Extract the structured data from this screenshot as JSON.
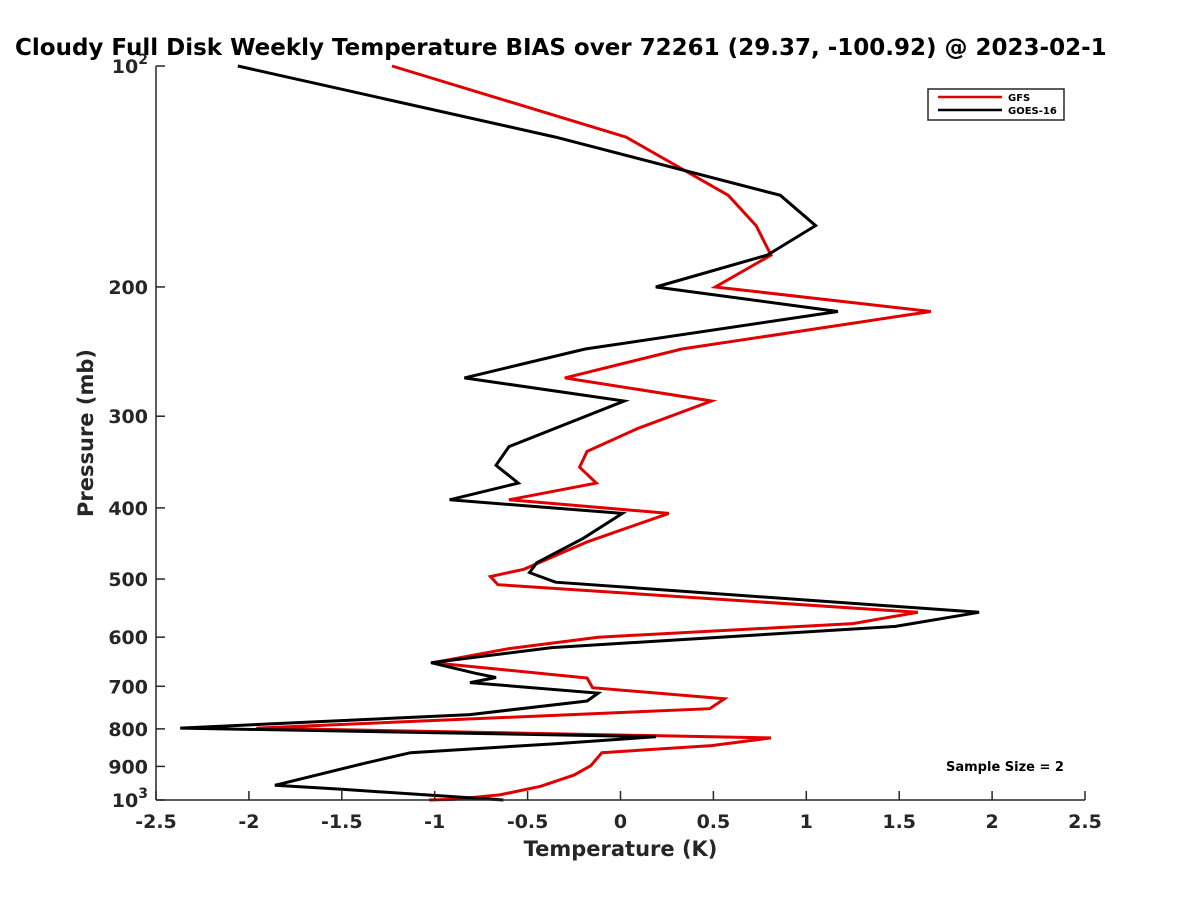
{
  "chart_data": {
    "type": "line",
    "title": "Cloudy Full Disk Weekly Temperature BIAS over 72261 (29.37, -100.92) @ 2023-02-1",
    "xlabel": "Temperature (K)",
    "ylabel": "Pressure (mb)",
    "xlim": [
      -2.5,
      2.5
    ],
    "ylim": [
      100,
      1000
    ],
    "y_scale": "log",
    "y_reversed": true,
    "x_ticks": [
      -2.5,
      -2,
      -1.5,
      -1,
      -0.5,
      0,
      0.5,
      1,
      1.5,
      2,
      2.5
    ],
    "x_tick_labels": [
      "-2.5",
      "-2",
      "-1.5",
      "-1",
      "-0.5",
      "0",
      "0.5",
      "1",
      "1.5",
      "2",
      "2.5"
    ],
    "y_ticks": [
      100,
      200,
      300,
      400,
      500,
      600,
      700,
      800,
      900,
      1000
    ],
    "y_tick_labels": [
      {
        "base": "10",
        "exp": "2"
      },
      {
        "base": "200",
        "exp": ""
      },
      {
        "base": "300",
        "exp": ""
      },
      {
        "base": "400",
        "exp": ""
      },
      {
        "base": "500",
        "exp": ""
      },
      {
        "base": "600",
        "exp": ""
      },
      {
        "base": "700",
        "exp": ""
      },
      {
        "base": "800",
        "exp": ""
      },
      {
        "base": "900",
        "exp": ""
      },
      {
        "base": "10",
        "exp": "3"
      }
    ],
    "grid": false,
    "legend_position": "top-right",
    "annotation": "Sample Size = 2",
    "series": [
      {
        "name": "GFS",
        "color": "#e00000",
        "points": [
          [
            -1.23,
            100
          ],
          [
            0.03,
            125
          ],
          [
            0.58,
            150
          ],
          [
            0.73,
            165
          ],
          [
            0.81,
            181
          ],
          [
            0.51,
            200
          ],
          [
            1.67,
            216
          ],
          [
            0.33,
            243
          ],
          [
            -0.3,
            266
          ],
          [
            0.49,
            286
          ],
          [
            0.09,
            312
          ],
          [
            -0.18,
            335
          ],
          [
            -0.22,
            352
          ],
          [
            -0.13,
            370
          ],
          [
            -0.6,
            390
          ],
          [
            0.26,
            407
          ],
          [
            -0.18,
            445
          ],
          [
            -0.52,
            485
          ],
          [
            -0.7,
            496
          ],
          [
            -0.66,
            509
          ],
          [
            1.6,
            555
          ],
          [
            1.25,
            575
          ],
          [
            -0.12,
            600
          ],
          [
            -0.6,
            622
          ],
          [
            -1.01,
            650
          ],
          [
            -0.18,
            682
          ],
          [
            -0.15,
            703
          ],
          [
            0.56,
            728
          ],
          [
            0.48,
            751
          ],
          [
            -1.96,
            798
          ],
          [
            0.81,
            823
          ],
          [
            0.49,
            843
          ],
          [
            -0.1,
            862
          ],
          [
            -0.16,
            898
          ],
          [
            -0.25,
            925
          ],
          [
            -0.43,
            958
          ],
          [
            -0.65,
            984
          ],
          [
            -0.9,
            998
          ],
          [
            -1.03,
            1000
          ]
        ]
      },
      {
        "name": "GOES-16",
        "color": "#000000",
        "points": [
          [
            -2.06,
            100
          ],
          [
            -0.35,
            125
          ],
          [
            0.86,
            150
          ],
          [
            1.05,
            165
          ],
          [
            0.79,
            181
          ],
          [
            0.19,
            200
          ],
          [
            1.17,
            216
          ],
          [
            -0.19,
            243
          ],
          [
            -0.84,
            266
          ],
          [
            0.02,
            286
          ],
          [
            -0.6,
            330
          ],
          [
            -0.67,
            350
          ],
          [
            -0.55,
            370
          ],
          [
            -0.92,
            390
          ],
          [
            0.01,
            407
          ],
          [
            -0.2,
            440
          ],
          [
            -0.45,
            475
          ],
          [
            -0.49,
            490
          ],
          [
            -0.35,
            505
          ],
          [
            1.93,
            555
          ],
          [
            1.48,
            580
          ],
          [
            -0.37,
            620
          ],
          [
            -1.02,
            650
          ],
          [
            -0.78,
            672
          ],
          [
            -0.67,
            681
          ],
          [
            -0.81,
            692
          ],
          [
            -0.12,
            715
          ],
          [
            -0.18,
            733
          ],
          [
            -0.81,
            765
          ],
          [
            -2.37,
            798
          ],
          [
            0.19,
            820
          ],
          [
            -0.35,
            838
          ],
          [
            -1.13,
            862
          ],
          [
            -1.37,
            890
          ],
          [
            -1.86,
            955
          ],
          [
            -1.5,
            967
          ],
          [
            -0.63,
            1000
          ]
        ]
      }
    ]
  }
}
